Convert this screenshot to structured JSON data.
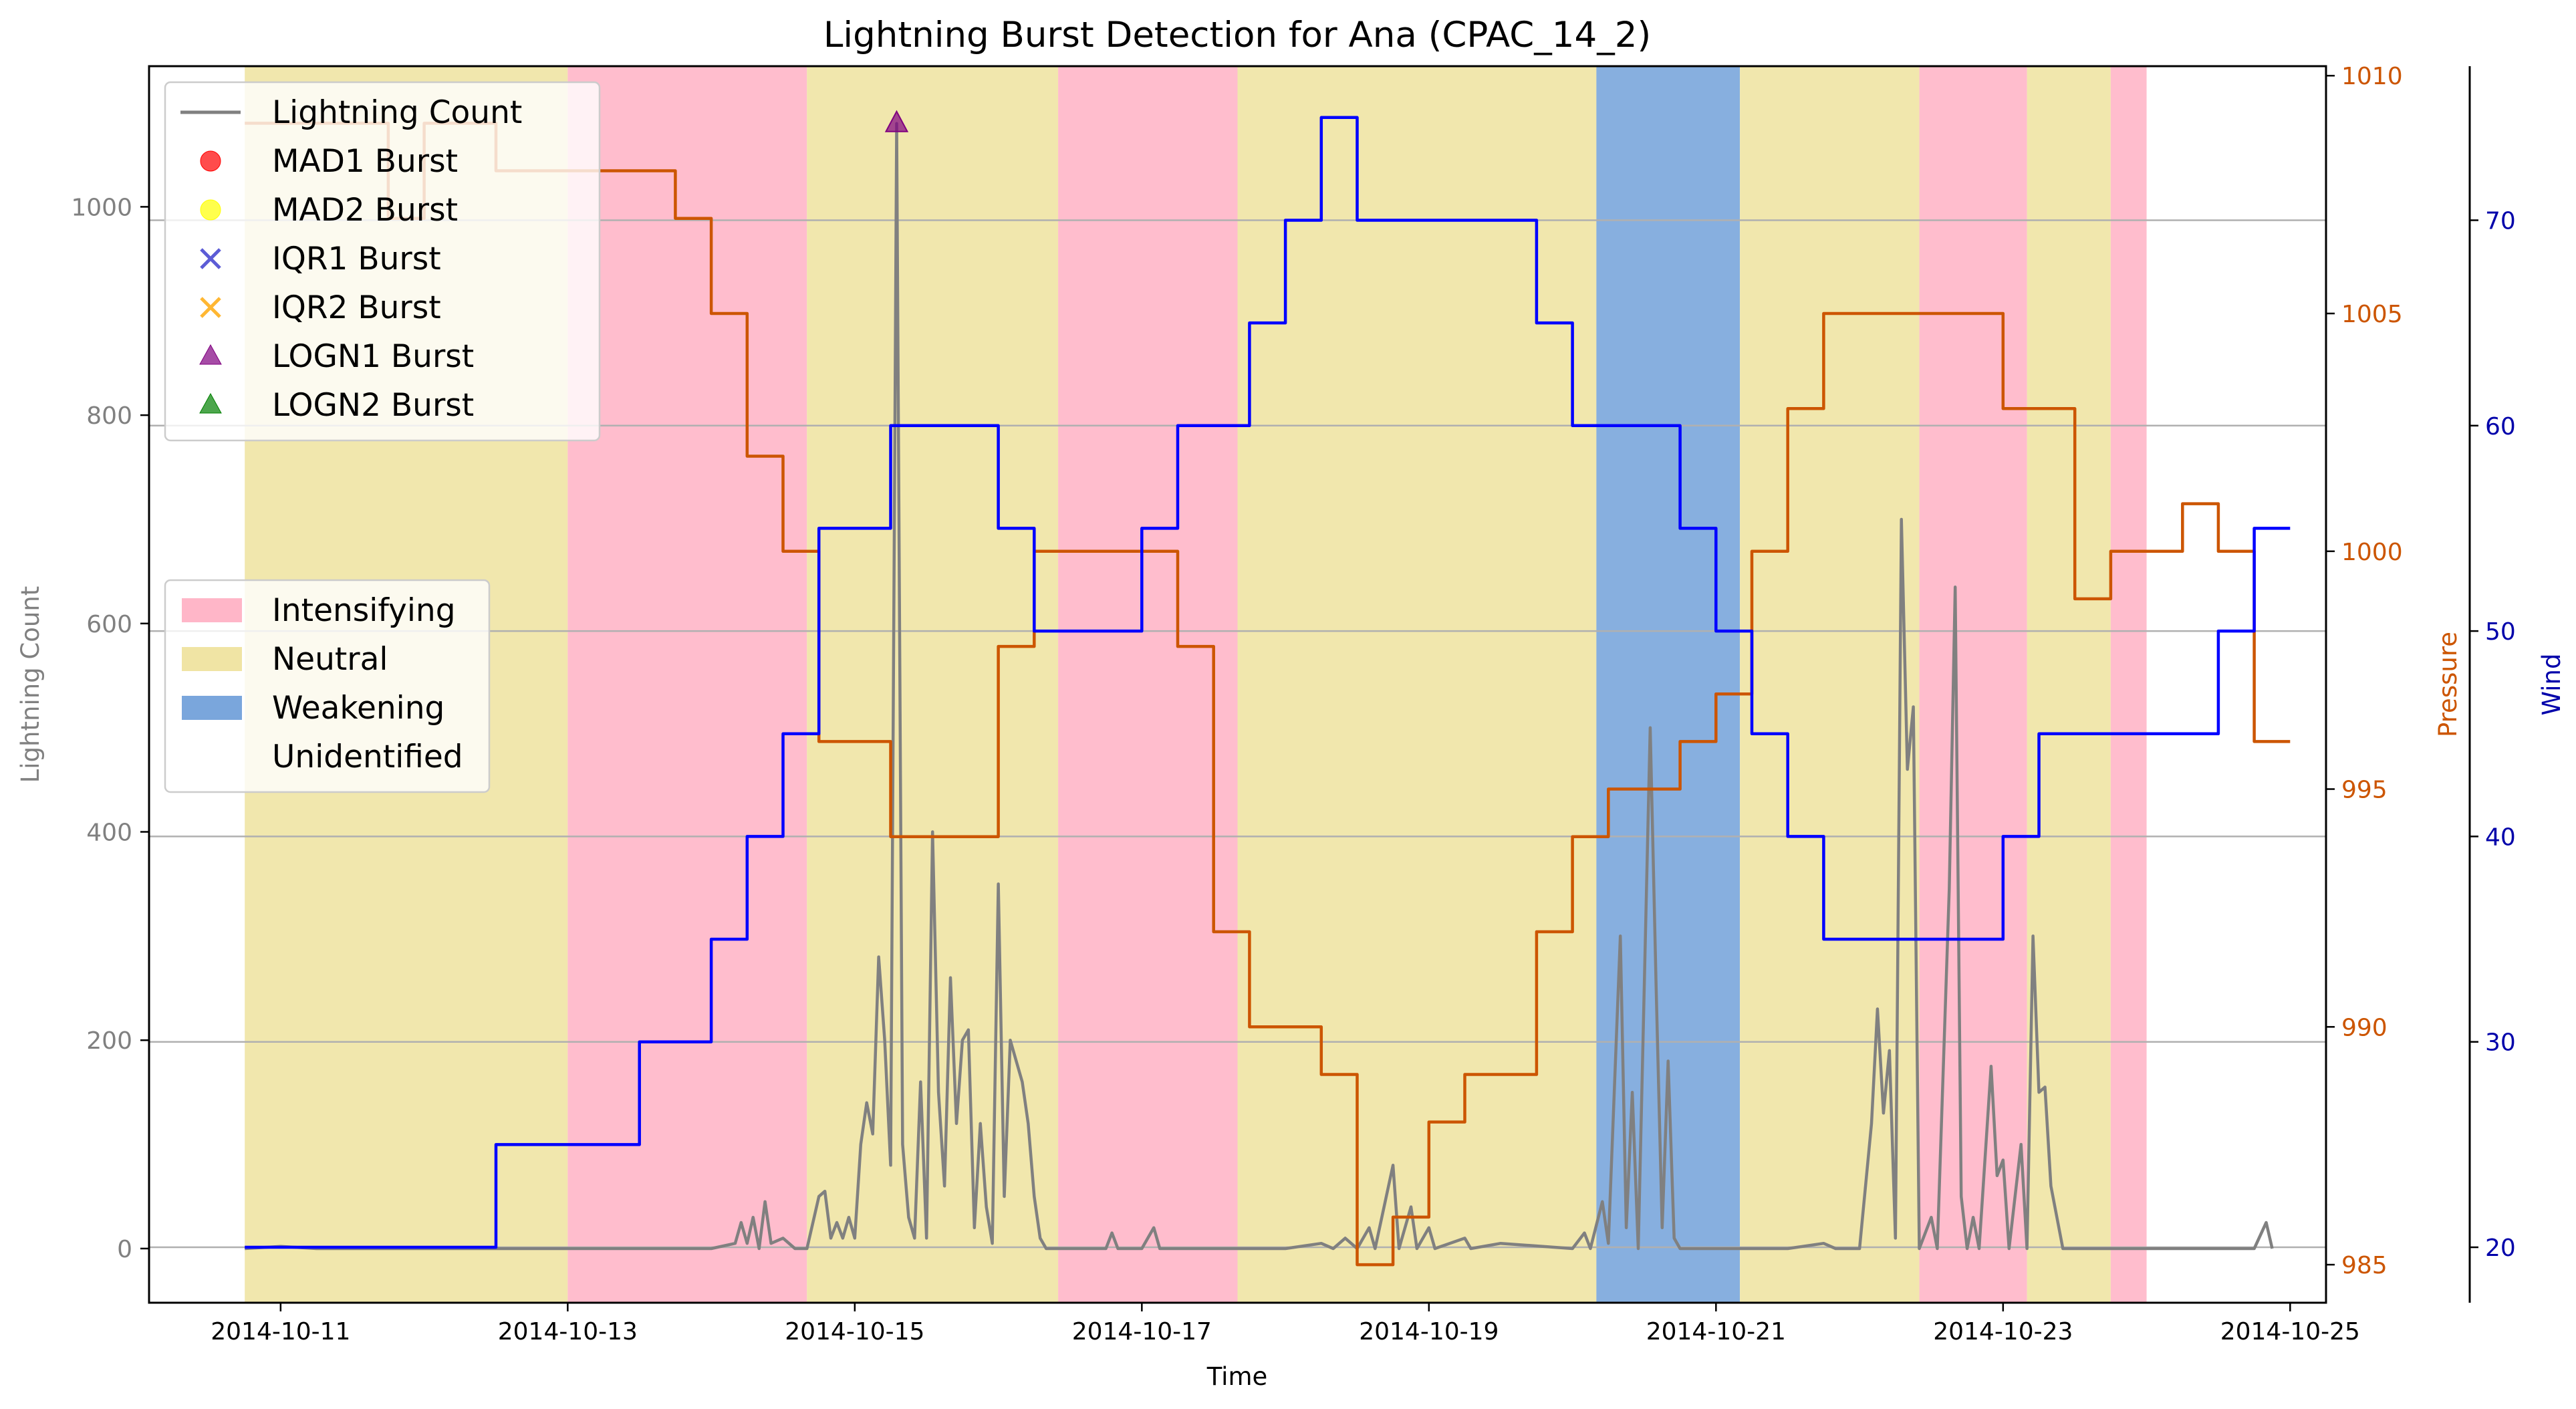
{
  "chart_data": {
    "type": "line",
    "title": "Lightning Burst Detection for Ana (CPAC_14_2)",
    "xlabel": "Time",
    "ylabel_left": "Lightning Count",
    "ylabel_pressure": "Pressure",
    "ylabel_wind": "Wind",
    "xlim": [
      "2014-10-10T02:00",
      "2014-10-25T06:00"
    ],
    "x_ticks": [
      "2014-10-11",
      "2014-10-13",
      "2014-10-15",
      "2014-10-17",
      "2014-10-19",
      "2014-10-21",
      "2014-10-23",
      "2014-10-25"
    ],
    "ylim_lightning": [
      -52,
      1135
    ],
    "y_ticks_lightning": [
      0,
      200,
      400,
      600,
      800,
      1000
    ],
    "ylim_pressure": [
      984.2,
      1010.2
    ],
    "y_ticks_pressure": [
      985,
      990,
      995,
      1000,
      1005,
      1010
    ],
    "ylim_wind": [
      17.3,
      77.5
    ],
    "y_ticks_wind": [
      20,
      30,
      40,
      50,
      60,
      70
    ],
    "grid": "horizontal at wind axis ticks",
    "colors": {
      "lightning": "#808080",
      "pressure": "#cc5500",
      "wind": "#0000ff",
      "intensifying": "#ffb6c8",
      "neutral": "#f0e4a4",
      "weakening": "#7aa6dc",
      "grid": "#b0b0b0"
    },
    "legend_top": {
      "position": "upper-left",
      "entries": [
        {
          "label": "Lightning Count",
          "marker": "line",
          "color": "#808080"
        },
        {
          "label": "MAD1 Burst",
          "marker": "circle",
          "color": "#ff0000"
        },
        {
          "label": "MAD2 Burst",
          "marker": "circle",
          "color": "#ffff00"
        },
        {
          "label": "IQR1 Burst",
          "marker": "x",
          "color": "#3333cc"
        },
        {
          "label": "IQR2 Burst",
          "marker": "x",
          "color": "#ffa500"
        },
        {
          "label": "LOGN1 Burst",
          "marker": "triangle",
          "color": "#800080"
        },
        {
          "label": "LOGN2 Burst",
          "marker": "triangle",
          "color": "#008000"
        }
      ]
    },
    "legend_phase": {
      "position": "center-left",
      "entries": [
        {
          "label": "Intensifying",
          "color": "#ffb6c8"
        },
        {
          "label": "Neutral",
          "color": "#f0e4a4"
        },
        {
          "label": "Weakening",
          "color": "#7aa6dc"
        },
        {
          "label": "Unidentified",
          "color": "none"
        }
      ]
    },
    "phases": [
      {
        "phase": "Neutral",
        "start": "2014-10-10T18:00",
        "end": "2014-10-13T00:00"
      },
      {
        "phase": "Intensifying",
        "start": "2014-10-13T00:00",
        "end": "2014-10-14T16:00"
      },
      {
        "phase": "Neutral",
        "start": "2014-10-14T16:00",
        "end": "2014-10-16T10:00"
      },
      {
        "phase": "Intensifying",
        "start": "2014-10-16T10:00",
        "end": "2014-10-17T16:00"
      },
      {
        "phase": "Neutral",
        "start": "2014-10-17T16:00",
        "end": "2014-10-20T04:00"
      },
      {
        "phase": "Weakening",
        "start": "2014-10-20T04:00",
        "end": "2014-10-21T04:00"
      },
      {
        "phase": "Neutral",
        "start": "2014-10-21T04:00",
        "end": "2014-10-22T10:00"
      },
      {
        "phase": "Intensifying",
        "start": "2014-10-22T10:00",
        "end": "2014-10-23T04:00"
      },
      {
        "phase": "Neutral",
        "start": "2014-10-23T04:00",
        "end": "2014-10-23T18:00"
      },
      {
        "phase": "Intensifying",
        "start": "2014-10-23T18:00",
        "end": "2014-10-24T00:00"
      }
    ],
    "series": [
      {
        "name": "Lightning Count",
        "axis": "lightning",
        "step": false,
        "points": [
          [
            "2014-10-10T18:00",
            0
          ],
          [
            "2014-10-11T00:00",
            2
          ],
          [
            "2014-10-11T06:00",
            0
          ],
          [
            "2014-10-12T00:00",
            0
          ],
          [
            "2014-10-13T00:00",
            0
          ],
          [
            "2014-10-13T12:00",
            0
          ],
          [
            "2014-10-14T00:00",
            0
          ],
          [
            "2014-10-14T04:00",
            5
          ],
          [
            "2014-10-14T05:00",
            25
          ],
          [
            "2014-10-14T06:00",
            5
          ],
          [
            "2014-10-14T07:00",
            30
          ],
          [
            "2014-10-14T08:00",
            0
          ],
          [
            "2014-10-14T09:00",
            45
          ],
          [
            "2014-10-14T10:00",
            5
          ],
          [
            "2014-10-14T12:00",
            10
          ],
          [
            "2014-10-14T14:00",
            0
          ],
          [
            "2014-10-14T16:00",
            0
          ],
          [
            "2014-10-14T18:00",
            50
          ],
          [
            "2014-10-14T19:00",
            55
          ],
          [
            "2014-10-14T20:00",
            10
          ],
          [
            "2014-10-14T21:00",
            25
          ],
          [
            "2014-10-14T22:00",
            10
          ],
          [
            "2014-10-14T23:00",
            30
          ],
          [
            "2014-10-15T00:00",
            10
          ],
          [
            "2014-10-15T01:00",
            100
          ],
          [
            "2014-10-15T02:00",
            140
          ],
          [
            "2014-10-15T03:00",
            110
          ],
          [
            "2014-10-15T04:00",
            280
          ],
          [
            "2014-10-15T05:00",
            200
          ],
          [
            "2014-10-15T06:00",
            80
          ],
          [
            "2014-10-15T07:00",
            1080
          ],
          [
            "2014-10-15T08:00",
            100
          ],
          [
            "2014-10-15T09:00",
            30
          ],
          [
            "2014-10-15T10:00",
            10
          ],
          [
            "2014-10-15T11:00",
            160
          ],
          [
            "2014-10-15T12:00",
            10
          ],
          [
            "2014-10-15T13:00",
            400
          ],
          [
            "2014-10-15T14:00",
            150
          ],
          [
            "2014-10-15T15:00",
            60
          ],
          [
            "2014-10-15T16:00",
            260
          ],
          [
            "2014-10-15T17:00",
            120
          ],
          [
            "2014-10-15T18:00",
            200
          ],
          [
            "2014-10-15T19:00",
            210
          ],
          [
            "2014-10-15T20:00",
            20
          ],
          [
            "2014-10-15T21:00",
            120
          ],
          [
            "2014-10-15T22:00",
            40
          ],
          [
            "2014-10-15T23:00",
            5
          ],
          [
            "2014-10-16T00:00",
            350
          ],
          [
            "2014-10-16T01:00",
            50
          ],
          [
            "2014-10-16T02:00",
            200
          ],
          [
            "2014-10-16T03:00",
            180
          ],
          [
            "2014-10-16T04:00",
            160
          ],
          [
            "2014-10-16T05:00",
            120
          ],
          [
            "2014-10-16T06:00",
            50
          ],
          [
            "2014-10-16T07:00",
            10
          ],
          [
            "2014-10-16T08:00",
            0
          ],
          [
            "2014-10-16T12:00",
            0
          ],
          [
            "2014-10-16T18:00",
            0
          ],
          [
            "2014-10-16T19:00",
            15
          ],
          [
            "2014-10-16T20:00",
            0
          ],
          [
            "2014-10-17T00:00",
            0
          ],
          [
            "2014-10-17T02:00",
            20
          ],
          [
            "2014-10-17T03:00",
            0
          ],
          [
            "2014-10-17T12:00",
            0
          ],
          [
            "2014-10-18T00:00",
            0
          ],
          [
            "2014-10-18T06:00",
            5
          ],
          [
            "2014-10-18T08:00",
            0
          ],
          [
            "2014-10-18T10:00",
            10
          ],
          [
            "2014-10-18T12:00",
            0
          ],
          [
            "2014-10-18T14:00",
            20
          ],
          [
            "2014-10-18T15:00",
            0
          ],
          [
            "2014-10-18T18:00",
            80
          ],
          [
            "2014-10-18T19:00",
            0
          ],
          [
            "2014-10-18T21:00",
            40
          ],
          [
            "2014-10-18T22:00",
            0
          ],
          [
            "2014-10-19T00:00",
            20
          ],
          [
            "2014-10-19T01:00",
            0
          ],
          [
            "2014-10-19T06:00",
            10
          ],
          [
            "2014-10-19T07:00",
            0
          ],
          [
            "2014-10-19T12:00",
            5
          ],
          [
            "2014-10-20T00:00",
            0
          ],
          [
            "2014-10-20T02:00",
            15
          ],
          [
            "2014-10-20T03:00",
            0
          ],
          [
            "2014-10-20T05:00",
            45
          ],
          [
            "2014-10-20T06:00",
            5
          ],
          [
            "2014-10-20T08:00",
            300
          ],
          [
            "2014-10-20T09:00",
            20
          ],
          [
            "2014-10-20T10:00",
            150
          ],
          [
            "2014-10-20T11:00",
            0
          ],
          [
            "2014-10-20T13:00",
            500
          ],
          [
            "2014-10-20T14:00",
            250
          ],
          [
            "2014-10-20T15:00",
            20
          ],
          [
            "2014-10-20T16:00",
            180
          ],
          [
            "2014-10-20T17:00",
            10
          ],
          [
            "2014-10-20T18:00",
            0
          ],
          [
            "2014-10-21T00:00",
            0
          ],
          [
            "2014-10-21T12:00",
            0
          ],
          [
            "2014-10-21T18:00",
            5
          ],
          [
            "2014-10-21T20:00",
            0
          ],
          [
            "2014-10-22T00:00",
            0
          ],
          [
            "2014-10-22T02:00",
            120
          ],
          [
            "2014-10-22T03:00",
            230
          ],
          [
            "2014-10-22T04:00",
            130
          ],
          [
            "2014-10-22T05:00",
            190
          ],
          [
            "2014-10-22T06:00",
            10
          ],
          [
            "2014-10-22T07:00",
            700
          ],
          [
            "2014-10-22T08:00",
            460
          ],
          [
            "2014-10-22T09:00",
            520
          ],
          [
            "2014-10-22T10:00",
            0
          ],
          [
            "2014-10-22T12:00",
            30
          ],
          [
            "2014-10-22T13:00",
            0
          ],
          [
            "2014-10-22T15:00",
            345
          ],
          [
            "2014-10-22T16:00",
            635
          ],
          [
            "2014-10-22T17:00",
            50
          ],
          [
            "2014-10-22T18:00",
            0
          ],
          [
            "2014-10-22T19:00",
            30
          ],
          [
            "2014-10-22T20:00",
            0
          ],
          [
            "2014-10-22T22:00",
            175
          ],
          [
            "2014-10-22T23:00",
            70
          ],
          [
            "2014-10-23T00:00",
            85
          ],
          [
            "2014-10-23T01:00",
            0
          ],
          [
            "2014-10-23T03:00",
            100
          ],
          [
            "2014-10-23T04:00",
            0
          ],
          [
            "2014-10-23T05:00",
            300
          ],
          [
            "2014-10-23T06:00",
            150
          ],
          [
            "2014-10-23T07:00",
            155
          ],
          [
            "2014-10-23T08:00",
            60
          ],
          [
            "2014-10-23T10:00",
            0
          ],
          [
            "2014-10-24T00:00",
            0
          ],
          [
            "2014-10-24T18:00",
            0
          ],
          [
            "2014-10-24T20:00",
            25
          ],
          [
            "2014-10-24T21:00",
            0
          ]
        ]
      },
      {
        "name": "Pressure",
        "axis": "pressure",
        "step": true,
        "points": [
          [
            "2014-10-10T18:00",
            1009
          ],
          [
            "2014-10-11T18:00",
            1007
          ],
          [
            "2014-10-12T00:00",
            1009
          ],
          [
            "2014-10-12T12:00",
            1008
          ],
          [
            "2014-10-13T18:00",
            1007
          ],
          [
            "2014-10-14T00:00",
            1005
          ],
          [
            "2014-10-14T06:00",
            1002
          ],
          [
            "2014-10-14T12:00",
            1000
          ],
          [
            "2014-10-14T18:00",
            996
          ],
          [
            "2014-10-15T06:00",
            994
          ],
          [
            "2014-10-16T00:00",
            998
          ],
          [
            "2014-10-16T06:00",
            1000
          ],
          [
            "2014-10-17T06:00",
            998
          ],
          [
            "2014-10-17T12:00",
            992
          ],
          [
            "2014-10-17T18:00",
            990
          ],
          [
            "2014-10-18T06:00",
            989
          ],
          [
            "2014-10-18T12:00",
            985
          ],
          [
            "2014-10-18T18:00",
            986
          ],
          [
            "2014-10-19T00:00",
            988
          ],
          [
            "2014-10-19T06:00",
            989
          ],
          [
            "2014-10-19T18:00",
            992
          ],
          [
            "2014-10-20T00:00",
            994
          ],
          [
            "2014-10-20T06:00",
            995
          ],
          [
            "2014-10-20T18:00",
            996
          ],
          [
            "2014-10-21T00:00",
            997
          ],
          [
            "2014-10-21T06:00",
            1000
          ],
          [
            "2014-10-21T12:00",
            1003
          ],
          [
            "2014-10-21T18:00",
            1005
          ],
          [
            "2014-10-22T18:00",
            1005
          ],
          [
            "2014-10-23T00:00",
            1003
          ],
          [
            "2014-10-23T12:00",
            999
          ],
          [
            "2014-10-23T18:00",
            1000
          ],
          [
            "2014-10-24T06:00",
            1001
          ],
          [
            "2014-10-24T12:00",
            1000
          ],
          [
            "2014-10-24T18:00",
            996
          ],
          [
            "2014-10-25T00:00",
            996
          ]
        ]
      },
      {
        "name": "Wind",
        "axis": "wind",
        "step": true,
        "points": [
          [
            "2014-10-10T18:00",
            20
          ],
          [
            "2014-10-12T12:00",
            25
          ],
          [
            "2014-10-13T12:00",
            30
          ],
          [
            "2014-10-14T00:00",
            35
          ],
          [
            "2014-10-14T06:00",
            40
          ],
          [
            "2014-10-14T12:00",
            45
          ],
          [
            "2014-10-14T18:00",
            55
          ],
          [
            "2014-10-15T06:00",
            60
          ],
          [
            "2014-10-16T00:00",
            55
          ],
          [
            "2014-10-16T06:00",
            50
          ],
          [
            "2014-10-17T00:00",
            55
          ],
          [
            "2014-10-17T06:00",
            60
          ],
          [
            "2014-10-17T18:00",
            65
          ],
          [
            "2014-10-18T00:00",
            70
          ],
          [
            "2014-10-18T06:00",
            75
          ],
          [
            "2014-10-18T12:00",
            70
          ],
          [
            "2014-10-19T18:00",
            65
          ],
          [
            "2014-10-20T00:00",
            60
          ],
          [
            "2014-10-20T18:00",
            55
          ],
          [
            "2014-10-21T00:00",
            50
          ],
          [
            "2014-10-21T06:00",
            45
          ],
          [
            "2014-10-21T12:00",
            40
          ],
          [
            "2014-10-21T18:00",
            35
          ],
          [
            "2014-10-23T00:00",
            40
          ],
          [
            "2014-10-23T06:00",
            45
          ],
          [
            "2014-10-24T12:00",
            50
          ],
          [
            "2014-10-24T18:00",
            55
          ],
          [
            "2014-10-25T00:00",
            55
          ]
        ]
      }
    ],
    "bursts": [
      {
        "method": "LOGN1 Burst",
        "x": "2014-10-15T07:00",
        "y": 1080,
        "marker": "triangle",
        "color": "#800080"
      }
    ]
  }
}
